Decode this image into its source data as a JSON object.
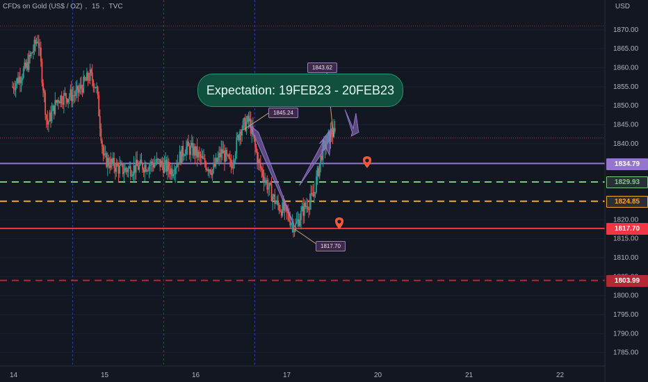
{
  "header": {
    "symbol": "CFDs on Gold (US$ / OZ)",
    "interval": "15",
    "source": "TVC"
  },
  "currency": "USD",
  "annotation": "Expectation: 19FEB23 - 20FEB23",
  "notes": [
    {
      "label": "1845.24"
    },
    {
      "label": "1843.62"
    },
    {
      "label": "1817.70"
    }
  ],
  "colors": {
    "background": "#131722",
    "up": "#26a69a",
    "down": "#ef5350",
    "purple": "#9575cd",
    "green_dash": "#81c784",
    "orange_dash": "#f5a623",
    "red_line": "#f23645",
    "dark_red_dash": "#b22833"
  },
  "chart_data": {
    "type": "candlestick",
    "ylim": [
      1780,
      1876
    ],
    "y_ticks": [
      1785,
      1790,
      1795,
      1800,
      1805,
      1810,
      1815,
      1820,
      1825,
      1830,
      1835,
      1840,
      1845,
      1850,
      1855,
      1860,
      1865,
      1870
    ],
    "y_tick_labels": [
      "1785.00",
      "1790.00",
      "1795.00",
      "1800.00",
      "1805.00",
      "1810.00",
      "1815.00",
      "1820.00",
      "1825.00",
      "1830.00",
      "1835.00",
      "1840.00",
      "1845.00",
      "1850.00",
      "1855.00",
      "1860.00",
      "1865.00",
      "1870.00"
    ],
    "x_ticks": [
      "14",
      "15",
      "16",
      "17",
      "20",
      "21",
      "22"
    ],
    "x_tick_values": [
      0,
      1,
      2,
      3,
      4,
      5,
      6
    ],
    "horizontal_levels": [
      {
        "value": 1834.79,
        "label": "1834.79",
        "style": "solid",
        "color": "#9575cd"
      },
      {
        "value": 1829.93,
        "label": "1829.93",
        "style": "dashed",
        "color": "#81c784"
      },
      {
        "value": 1824.85,
        "label": "1824.85",
        "style": "dashed",
        "color": "#f5a623"
      },
      {
        "value": 1817.7,
        "label": "1817.70",
        "style": "solid",
        "color": "#f23645"
      },
      {
        "value": 1803.99,
        "label": "1803.99",
        "style": "dashed",
        "color": "#b22833"
      }
    ],
    "path": [
      [
        0.0,
        1855
      ],
      [
        0.15,
        1860
      ],
      [
        0.28,
        1868
      ],
      [
        0.38,
        1845
      ],
      [
        0.5,
        1852
      ],
      [
        0.7,
        1853
      ],
      [
        0.85,
        1858
      ],
      [
        0.92,
        1855
      ],
      [
        1.0,
        1836
      ],
      [
        1.2,
        1833
      ],
      [
        1.4,
        1834
      ],
      [
        1.6,
        1835
      ],
      [
        1.75,
        1833
      ],
      [
        1.9,
        1839
      ],
      [
        2.0,
        1838
      ],
      [
        2.1,
        1835
      ],
      [
        2.2,
        1833
      ],
      [
        2.3,
        1838
      ],
      [
        2.4,
        1834
      ],
      [
        2.5,
        1844
      ],
      [
        2.6,
        1846
      ],
      [
        2.7,
        1835
      ],
      [
        2.8,
        1829
      ],
      [
        2.9,
        1824
      ],
      [
        3.0,
        1822
      ],
      [
        3.1,
        1818
      ],
      [
        3.2,
        1823
      ],
      [
        3.3,
        1826
      ],
      [
        3.4,
        1838
      ],
      [
        3.5,
        1843
      ],
      [
        3.55,
        1842
      ]
    ]
  }
}
